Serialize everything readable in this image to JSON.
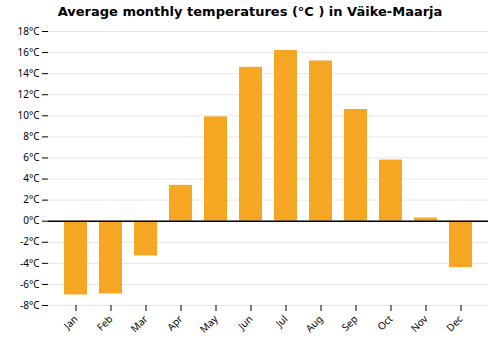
{
  "chart_data": {
    "type": "bar",
    "title": "Average monthly temperatures (°C ) in Väike-Maarja",
    "categories": [
      "Jan",
      "Feb",
      "Mar",
      "Apr",
      "May",
      "Jun",
      "Jul",
      "Aug",
      "Sep",
      "Oct",
      "Nov",
      "Dec"
    ],
    "values": [
      -7.0,
      -6.9,
      -3.3,
      3.4,
      9.9,
      14.6,
      16.2,
      15.2,
      10.6,
      5.8,
      0.3,
      -4.4
    ],
    "color": "#F5A623",
    "ylim": [
      -8,
      18
    ],
    "yticks": [
      {
        "value": -8,
        "label": "-8°C"
      },
      {
        "value": -6,
        "label": "-6°C"
      },
      {
        "value": -4,
        "label": "-4°C"
      },
      {
        "value": -2,
        "label": "-2°C"
      },
      {
        "value": 0,
        "label": "0°C"
      },
      {
        "value": 2,
        "label": "2°C"
      },
      {
        "value": 4,
        "label": "4°C"
      },
      {
        "value": 6,
        "label": "6°C"
      },
      {
        "value": 8,
        "label": "8°C"
      },
      {
        "value": 10,
        "label": "10°C"
      },
      {
        "value": 12,
        "label": "12°C"
      },
      {
        "value": 14,
        "label": "14°C"
      },
      {
        "value": 16,
        "label": "16°C"
      },
      {
        "value": 18,
        "label": "18°C"
      }
    ],
    "grid": true
  }
}
